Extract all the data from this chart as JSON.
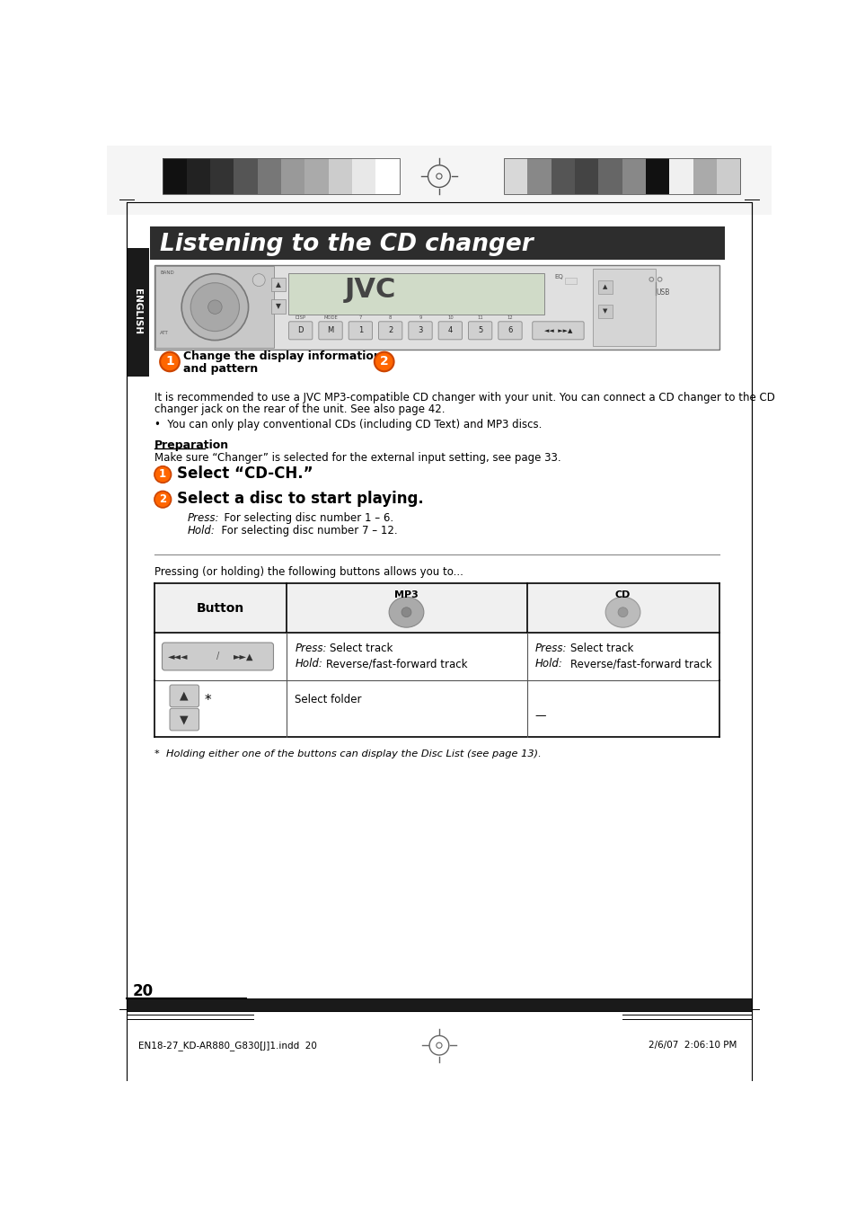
{
  "page_bg": "#ffffff",
  "title_bg": "#2d2d2d",
  "title_text": "Listening to the CD changer",
  "title_color": "#ffffff",
  "sidebar_bg": "#1a1a1a",
  "sidebar_text": "ENGLISH",
  "sidebar_text_color": "#ffffff",
  "page_number": "20",
  "footer_left": "EN18-27_KD-AR880_G830[J]1.indd  20",
  "footer_right": "2/6/07  2:06:10 PM",
  "body_text_line1": "It is recommended to use a JVC MP3-compatible CD changer with your unit. You can connect a CD changer to the CD",
  "body_text_line2": "changer jack on the rear of the unit. See also page 42.",
  "body_bullet": "•  You can only play conventional CDs (including CD Text) and MP3 discs.",
  "prep_title": "Preparation",
  "prep_text": "Make sure “Changer” is selected for the external input setting, see page 33.",
  "step1_text": "Select “CD-CH.”",
  "step2_text": "Select a disc to start playing.",
  "step2_press": "  For selecting disc number 1 – 6.",
  "step2_hold": "  For selecting disc number 7 – 12.",
  "table_intro": "Pressing (or holding) the following buttons allows you to...",
  "col_button": "Button",
  "col_mp3": "MP3",
  "col_cd": "CD",
  "row2_mp3": "Select folder",
  "row2_cd": "—",
  "footnote": "*  Holding either one of the buttons can display the Disc List (see page 13).",
  "grayscale_left": [
    "#111111",
    "#222222",
    "#333333",
    "#555555",
    "#777777",
    "#999999",
    "#aaaaaa",
    "#cccccc",
    "#e8e8e8",
    "#ffffff"
  ],
  "grayscale_right": [
    "#d8d8d8",
    "#888888",
    "#555555",
    "#444444",
    "#666666",
    "#888888",
    "#111111",
    "#f0f0f0",
    "#aaaaaa",
    "#cccccc"
  ]
}
